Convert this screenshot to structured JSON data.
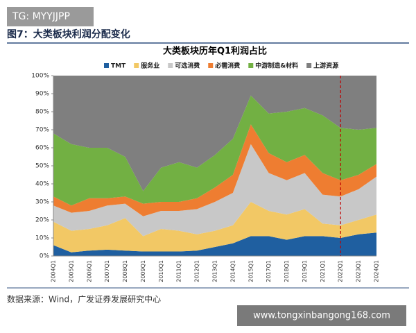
{
  "header": {
    "watermark": "TG: MYYJJPP",
    "figure_title": "图7：大类板块利润分配变化"
  },
  "chart_data": {
    "type": "stacked_area",
    "title": "大类板块历年Q1利润占比",
    "categories": [
      "2004Q1",
      "2005Q1",
      "2006Q1",
      "2007Q1",
      "2008Q1",
      "2009Q1",
      "2010Q1",
      "2011Q1",
      "2012Q1",
      "2013Q1",
      "2014Q1",
      "2015Q1",
      "2017Q1",
      "2018Q1",
      "2019Q1",
      "2021Q1",
      "2022Q1",
      "2023Q1",
      "2024Q1"
    ],
    "series": [
      {
        "name": "TMT",
        "color": "#1f5fa0",
        "values": [
          6,
          2,
          3,
          3.5,
          3,
          2.5,
          2.5,
          2.5,
          3,
          5,
          7,
          11,
          11,
          9,
          11,
          11,
          10,
          12,
          13
        ]
      },
      {
        "name": "服务业",
        "color": "#f2c865",
        "values": [
          13,
          12,
          12,
          13.5,
          18,
          8.5,
          12.5,
          11.5,
          9,
          9,
          10,
          19,
          14,
          14,
          15,
          7,
          7,
          8,
          10
        ]
      },
      {
        "name": "可选消费",
        "color": "#c8c8c8",
        "values": [
          9,
          10,
          10,
          11,
          8,
          11,
          10,
          11,
          14,
          16,
          18,
          32,
          21,
          19,
          20,
          16,
          16,
          17,
          21
        ]
      },
      {
        "name": "必需消费",
        "color": "#ee7d31",
        "values": [
          5,
          4,
          7,
          4,
          4,
          7,
          5,
          5,
          6,
          8,
          10,
          11,
          11,
          10,
          10,
          12,
          9,
          8,
          7
        ]
      },
      {
        "name": "中游制造&材料",
        "color": "#72b043",
        "values": [
          35,
          34,
          28,
          28,
          22,
          7,
          19,
          22,
          17,
          18,
          20,
          16,
          22,
          28,
          26,
          32,
          29,
          25,
          20
        ]
      },
      {
        "name": "上游资源",
        "color": "#7f7f7f",
        "values": [
          32,
          38,
          40,
          40,
          45,
          64,
          51,
          48,
          51,
          44,
          35,
          11,
          21,
          20,
          18,
          22,
          29,
          30,
          29
        ]
      }
    ],
    "ylim": [
      0,
      100
    ],
    "yticks": [
      {
        "value": 0,
        "label": "0%"
      },
      {
        "value": 10,
        "label": "10%"
      },
      {
        "value": 20,
        "label": "20%"
      },
      {
        "value": 30,
        "label": "30%"
      },
      {
        "value": 40,
        "label": "40%"
      },
      {
        "value": 50,
        "label": "50%"
      },
      {
        "value": 60,
        "label": "60%"
      },
      {
        "value": 70,
        "label": "70%"
      },
      {
        "value": 80,
        "label": "80%"
      },
      {
        "value": 90,
        "label": "90%"
      },
      {
        "value": 100,
        "label": "100%"
      }
    ],
    "reference_line": {
      "category_index": 16,
      "color": "#c00000"
    }
  },
  "footer": {
    "source": "数据来源：Wind，广发证券发展研究中心",
    "watermark": "www.tongxinbangong168.com"
  }
}
